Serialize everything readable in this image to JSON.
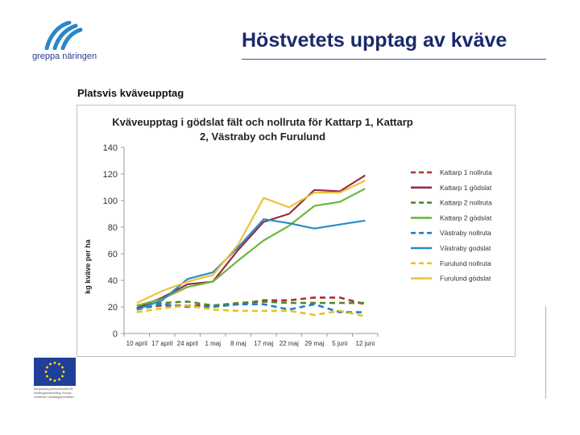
{
  "header": {
    "logo_text": "greppa näringen",
    "slide_title": "Höstvetets upptag av kväve"
  },
  "section_label": "Platsvis kväveupptag",
  "footer": {
    "eu_text": [
      "Europeiska jordbruksfonden för",
      "landsbygdsutveckling: Europa",
      "investerar i landsbygdsområden"
    ]
  },
  "chart_data": {
    "type": "line",
    "title_lines": [
      "Kväveupptag i gödslat fält och nollruta för Kattarp 1, Kattarp",
      "2, Västraby och Furulund"
    ],
    "ylabel": "kg kväve per ha",
    "xlabel": "",
    "ylim": [
      0,
      140
    ],
    "yticks": [
      0,
      20,
      40,
      60,
      80,
      100,
      120,
      140
    ],
    "grid": false,
    "legend_position": "right",
    "categories": [
      "10 april",
      "17 april",
      "24 april",
      "1 maj",
      "8 maj",
      "17 maj",
      "22 maj",
      "29 maj",
      "5 juni",
      "12 juni"
    ],
    "series": [
      {
        "name": "Kattarp 1 nollruta",
        "color": "#b02d3a",
        "dashed": true,
        "values": [
          19,
          21,
          21,
          21,
          22,
          25,
          25,
          27,
          27,
          22
        ]
      },
      {
        "name": "Kattarp 1 gödslat",
        "color": "#9a2c47",
        "dashed": false,
        "values": [
          19,
          27,
          37,
          39,
          63,
          84,
          90,
          108,
          107,
          119
        ]
      },
      {
        "name": "Kattarp 2 nollruta",
        "color": "#4e8a2a",
        "dashed": true,
        "values": [
          21,
          23,
          24,
          21,
          23,
          24,
          23,
          23,
          23,
          23
        ]
      },
      {
        "name": "Kattarp 2 gödslat",
        "color": "#6fb53e",
        "dashed": false,
        "values": [
          21,
          26,
          35,
          39,
          55,
          70,
          81,
          96,
          99,
          109
        ]
      },
      {
        "name": "Västraby nollruta",
        "color": "#2a7bbf",
        "dashed": true,
        "values": [
          18,
          22,
          20,
          20,
          22,
          22,
          18,
          22,
          16,
          16
        ]
      },
      {
        "name": "Västraby godslat",
        "color": "#2a8cc4",
        "dashed": false,
        "values": [
          18,
          25,
          41,
          46,
          65,
          86,
          83,
          79,
          82,
          85
        ]
      },
      {
        "name": "Furulund nollruta",
        "color": "#e6c31e",
        "dashed": true,
        "values": [
          16,
          19,
          21,
          18,
          17,
          17,
          17,
          14,
          17,
          13
        ]
      },
      {
        "name": "Furulund gödslat",
        "color": "#e8c53a",
        "dashed": false,
        "values": [
          23,
          32,
          39,
          44,
          67,
          102,
          95,
          106,
          106,
          115
        ]
      }
    ]
  }
}
